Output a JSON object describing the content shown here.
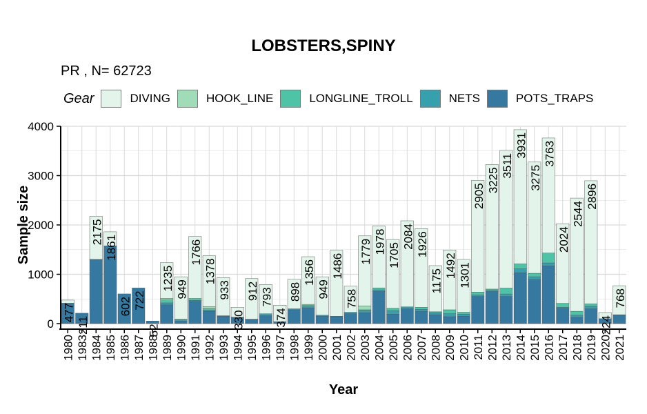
{
  "chart_data": {
    "type": "bar",
    "stacked": true,
    "title": "LOBSTERS,SPINY",
    "subtitle": "PR ,  N= 62723",
    "xlabel": "Year",
    "ylabel": "Sample size",
    "legend_title": "Gear",
    "legend_position": "top",
    "grid": true,
    "ylim": [
      0,
      4000
    ],
    "y_ticks": [
      0,
      1000,
      2000,
      3000,
      4000
    ],
    "categories": [
      "1980",
      "1983",
      "1984",
      "1985",
      "1986",
      "1987",
      "1988",
      "1989",
      "1990",
      "1991",
      "1992",
      "1993",
      "1994",
      "1995",
      "1996",
      "1997",
      "1998",
      "1999",
      "2000",
      "2001",
      "2002",
      "2003",
      "2004",
      "2005",
      "2006",
      "2007",
      "2008",
      "2009",
      "2010",
      "2011",
      "2012",
      "2013",
      "2014",
      "2015",
      "2016",
      "2017",
      "2018",
      "2019",
      "2020",
      "2021"
    ],
    "totals": [
      477,
      211,
      2175,
      1861,
      602,
      722,
      52,
      1235,
      949,
      1766,
      1378,
      933,
      330,
      912,
      793,
      374,
      898,
      1356,
      949,
      1486,
      758,
      1779,
      1978,
      1705,
      2084,
      1926,
      1175,
      1492,
      1301,
      2905,
      3225,
      3511,
      3931,
      3275,
      3763,
      2024,
      2544,
      2896,
      224,
      768
    ],
    "series": [
      {
        "name": "DIVING",
        "color": "#e3f5ea",
        "values": [
          62,
          0,
          873,
          286,
          0,
          0,
          0,
          725,
          860,
          1256,
          1036,
          773,
          200,
          822,
          593,
          334,
          598,
          966,
          779,
          1336,
          528,
          1419,
          1254,
          1395,
          1744,
          1596,
          935,
          1212,
          1071,
          2265,
          2525,
          2791,
          2721,
          2255,
          2333,
          1614,
          2294,
          2496,
          124,
          588
        ]
      },
      {
        "name": "HOOK_LINE",
        "color": "#a0dcb8",
        "values": [
          0,
          0,
          0,
          0,
          0,
          0,
          0,
          30,
          0,
          0,
          40,
          0,
          0,
          0,
          0,
          0,
          0,
          20,
          0,
          0,
          0,
          80,
          0,
          0,
          0,
          0,
          0,
          0,
          0,
          0,
          0,
          0,
          0,
          0,
          0,
          0,
          0,
          0,
          0,
          0
        ]
      },
      {
        "name": "LONGLINE_TROLL",
        "color": "#4fc3a5",
        "values": [
          0,
          0,
          0,
          0,
          0,
          0,
          0,
          60,
          15,
          40,
          30,
          10,
          0,
          0,
          0,
          0,
          0,
          30,
          0,
          0,
          0,
          20,
          40,
          50,
          0,
          40,
          20,
          80,
          40,
          60,
          30,
          120,
          100,
          70,
          200,
          80,
          80,
          50,
          0,
          0
        ]
      },
      {
        "name": "NETS",
        "color": "#36a0ac",
        "values": [
          15,
          0,
          10,
          0,
          0,
          0,
          0,
          40,
          24,
          20,
          22,
          10,
          10,
          10,
          40,
          0,
          20,
          20,
          20,
          10,
          30,
          40,
          34,
          70,
          40,
          40,
          40,
          60,
          40,
          30,
          20,
          50,
          80,
          60,
          60,
          20,
          40,
          50,
          0,
          10
        ]
      },
      {
        "name": "POTS_TRAPS",
        "color": "#3578a0",
        "values": [
          400,
          211,
          1292,
          1575,
          602,
          722,
          52,
          380,
          50,
          450,
          250,
          140,
          120,
          80,
          160,
          40,
          280,
          320,
          150,
          140,
          200,
          220,
          650,
          190,
          300,
          250,
          180,
          140,
          150,
          550,
          650,
          550,
          1030,
          890,
          1170,
          310,
          130,
          300,
          100,
          170
        ]
      }
    ]
  }
}
